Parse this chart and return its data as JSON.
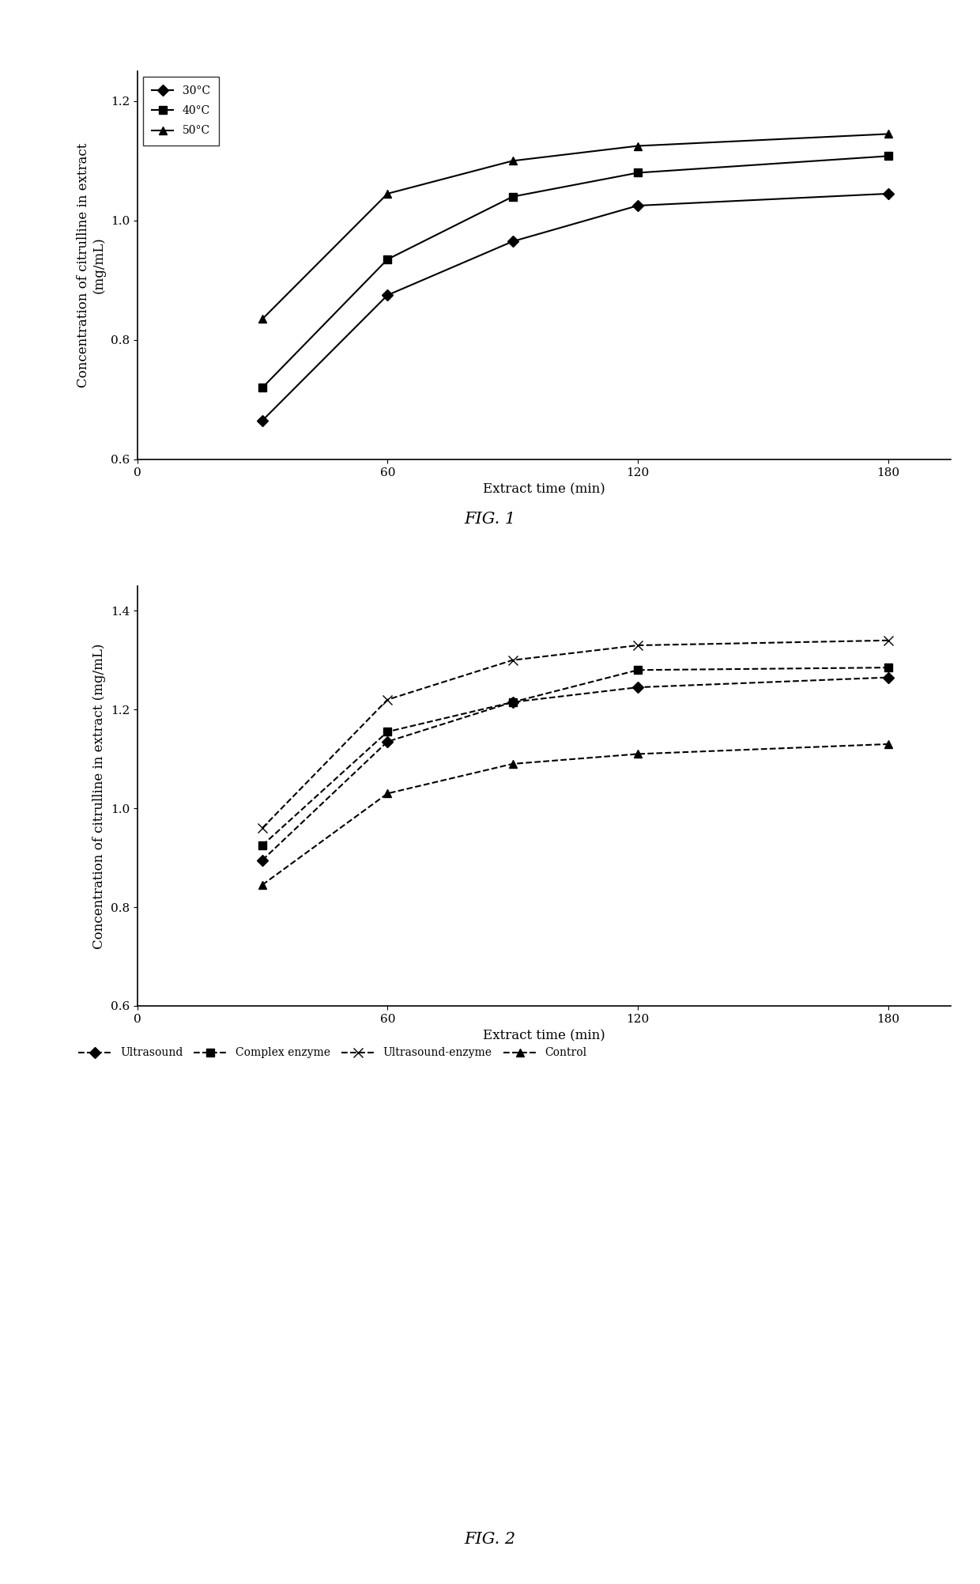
{
  "fig1": {
    "title": "FIG. 1",
    "xlabel": "Extract time (min)",
    "ylabel_line1": "Concentration of citrulline in extract",
    "ylabel_line2": "(mg/mL)",
    "xlim": [
      0,
      195
    ],
    "ylim": [
      0.6,
      1.25
    ],
    "xticks": [
      0,
      60,
      120,
      180
    ],
    "yticks": [
      0.6,
      0.8,
      1.0,
      1.2
    ],
    "series": [
      {
        "label": "30°C",
        "x": [
          30,
          60,
          90,
          120,
          180
        ],
        "y": [
          0.665,
          0.875,
          0.965,
          1.025,
          1.045
        ],
        "marker": "D",
        "linestyle": "-",
        "color": "#000000"
      },
      {
        "label": "40°C",
        "x": [
          30,
          60,
          90,
          120,
          180
        ],
        "y": [
          0.72,
          0.935,
          1.04,
          1.08,
          1.108
        ],
        "marker": "s",
        "linestyle": "-",
        "color": "#000000"
      },
      {
        "label": "50°C",
        "x": [
          30,
          60,
          90,
          120,
          180
        ],
        "y": [
          0.835,
          1.045,
          1.1,
          1.125,
          1.145
        ],
        "marker": "^",
        "linestyle": "-",
        "color": "#000000"
      }
    ]
  },
  "fig2": {
    "title": "FIG. 2",
    "xlabel": "Extract time (min)",
    "ylabel": "Concentration of citrulline in extract (mg/mL)",
    "xlim": [
      0,
      195
    ],
    "ylim": [
      0.6,
      1.45
    ],
    "xticks": [
      0,
      60,
      120,
      180
    ],
    "yticks": [
      0.6,
      0.8,
      1.0,
      1.2,
      1.4
    ],
    "series": [
      {
        "label": "Ultrasound",
        "x": [
          30,
          60,
          90,
          120,
          180
        ],
        "y": [
          0.895,
          1.135,
          1.215,
          1.245,
          1.265
        ],
        "marker": "D",
        "linestyle": "--",
        "color": "#000000"
      },
      {
        "label": "Complex enzyme",
        "x": [
          30,
          60,
          90,
          120,
          180
        ],
        "y": [
          0.925,
          1.155,
          1.215,
          1.28,
          1.285
        ],
        "marker": "s",
        "linestyle": "--",
        "color": "#000000"
      },
      {
        "label": "Ultrasound-enzyme",
        "x": [
          30,
          60,
          90,
          120,
          180
        ],
        "y": [
          0.96,
          1.22,
          1.3,
          1.33,
          1.34
        ],
        "marker": "x",
        "linestyle": "--",
        "color": "#000000"
      },
      {
        "label": "Control",
        "x": [
          30,
          60,
          90,
          120,
          180
        ],
        "y": [
          0.845,
          1.03,
          1.09,
          1.11,
          1.13
        ],
        "marker": "^",
        "linestyle": "--",
        "color": "#000000"
      }
    ]
  },
  "background_color": "#ffffff",
  "font_family": "DejaVu Serif",
  "title_fontsize": 15,
  "label_fontsize": 12,
  "tick_fontsize": 11,
  "legend_fontsize": 10
}
